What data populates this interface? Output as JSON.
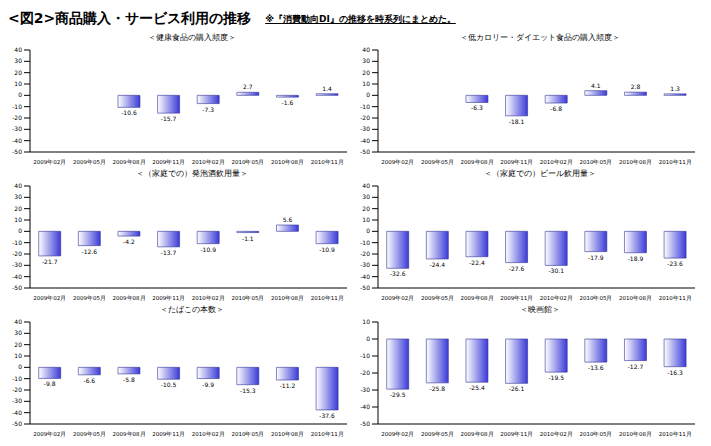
{
  "title": "<図2>商品購入・サービス利用の推移",
  "note": "※『消費動向DI』の推移を時系列にまとめた。",
  "chart_data": [
    {
      "type": "bar",
      "title": "＜健康食品の購入頻度＞",
      "categories": [
        "2009年02月",
        "2009年05月",
        "2009年08月",
        "2009年11月",
        "2010年02月",
        "2010年05月",
        "2010年08月",
        "2010年11月"
      ],
      "values": [
        null,
        null,
        -10.6,
        -15.7,
        -7.3,
        2.7,
        -1.6,
        1.4
      ],
      "color": "#3a3ad8",
      "ylim": [
        -50,
        40
      ],
      "yticks": [
        -50,
        -40,
        -30,
        -20,
        -10,
        0,
        10,
        20,
        30,
        40
      ],
      "data_labels": true
    },
    {
      "type": "bar",
      "title": "＜低カロリー・ダイエット食品の購入頻度＞",
      "categories": [
        "2009年02月",
        "2009年05月",
        "2009年08月",
        "2009年11月",
        "2010年02月",
        "2010年05月",
        "2010年08月",
        "2010年11月"
      ],
      "values": [
        null,
        null,
        -6.3,
        -18.1,
        -6.8,
        4.1,
        2.8,
        1.3
      ],
      "color": "#3a3ad8",
      "ylim": [
        -50,
        40
      ],
      "yticks": [
        -50,
        -40,
        -30,
        -20,
        -10,
        0,
        10,
        20,
        30,
        40
      ],
      "data_labels": true
    },
    {
      "type": "bar",
      "title": "＜（家庭での）発泡酒飲用量＞",
      "categories": [
        "2009年02月",
        "2009年05月",
        "2009年08月",
        "2009年11月",
        "2010年02月",
        "2010年05月",
        "2010年08月",
        "2010年11月"
      ],
      "values": [
        -21.7,
        -12.6,
        -4.2,
        -13.7,
        -10.9,
        -1.1,
        5.6,
        -10.9
      ],
      "color": "#3a3ad8",
      "ylim": [
        -50,
        40
      ],
      "yticks": [
        -50,
        -40,
        -30,
        -20,
        -10,
        0,
        10,
        20,
        30,
        40
      ],
      "data_labels": true
    },
    {
      "type": "bar",
      "title": "＜（家庭での）ビール飲用量＞",
      "categories": [
        "2009年02月",
        "2009年05月",
        "2009年08月",
        "2009年11月",
        "2010年02月",
        "2010年05月",
        "2010年08月",
        "2010年11月"
      ],
      "values": [
        -32.6,
        -24.4,
        -22.4,
        -27.6,
        -30.1,
        -17.9,
        -18.9,
        -23.6
      ],
      "color": "#3a3ad8",
      "ylim": [
        -50,
        40
      ],
      "yticks": [
        -50,
        -40,
        -30,
        -20,
        -10,
        0,
        10,
        20,
        30,
        40
      ],
      "data_labels": true
    },
    {
      "type": "bar",
      "title": "＜たばこの本数＞",
      "categories": [
        "2009年02月",
        "2009年05月",
        "2009年08月",
        "2009年11月",
        "2010年02月",
        "2010年05月",
        "2010年08月",
        "2010年11月"
      ],
      "values": [
        -9.8,
        -6.6,
        -5.8,
        -10.5,
        -9.9,
        -15.3,
        -11.2,
        -37.6
      ],
      "color": "#3a3ad8",
      "ylim": [
        -50,
        40
      ],
      "yticks": [
        -50,
        -40,
        -30,
        -20,
        -10,
        0,
        10,
        20,
        30,
        40
      ],
      "data_labels": true
    },
    {
      "type": "bar",
      "title": "＜映画館＞",
      "categories": [
        "2009年02月",
        "2009年05月",
        "2009年08月",
        "2009年11月",
        "2010年02月",
        "2010年05月",
        "2010年08月",
        "2010年11月"
      ],
      "values": [
        -29.5,
        -25.8,
        -25.4,
        -26.1,
        -19.5,
        -13.6,
        -12.7,
        -16.3
      ],
      "color": "#3a3ad8",
      "ylim": [
        -50,
        10
      ],
      "yticks": [
        -50,
        -40,
        -30,
        -20,
        -10,
        0,
        10
      ],
      "data_labels": true
    }
  ]
}
